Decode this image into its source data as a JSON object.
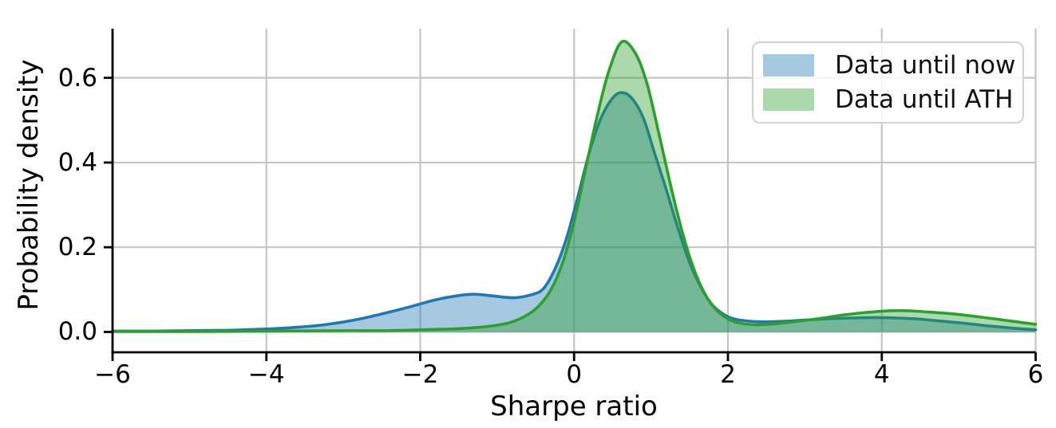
{
  "chart_data": {
    "type": "area",
    "subtype": "kde-density",
    "title": "",
    "xlabel": "Sharpe ratio",
    "ylabel": "Probability density",
    "xlim": [
      -6,
      6
    ],
    "ylim": [
      -0.048,
      0.716
    ],
    "x_ticks": [
      -6,
      -4,
      -2,
      0,
      2,
      4,
      6
    ],
    "x_tick_labels": [
      "−6",
      "−4",
      "−2",
      "0",
      "2",
      "4",
      "6"
    ],
    "y_ticks": [
      0.0,
      0.2,
      0.4,
      0.6
    ],
    "y_tick_labels": [
      "0.0",
      "0.2",
      "0.4",
      "0.6"
    ],
    "grid": true,
    "grid_color": "#c5c5c5",
    "spine_color": "#000000",
    "legend_position": "upper right",
    "series": [
      {
        "name": "Data until now",
        "color": "#1f77b4",
        "fill_opacity": 0.4,
        "peak": {
          "x": 0.62,
          "density": 0.565
        },
        "points": [
          [
            -6.0,
            0.002
          ],
          [
            -5.5,
            0.002
          ],
          [
            -5.0,
            0.003
          ],
          [
            -4.5,
            0.004
          ],
          [
            -4.0,
            0.007
          ],
          [
            -3.6,
            0.011
          ],
          [
            -3.2,
            0.018
          ],
          [
            -2.8,
            0.03
          ],
          [
            -2.4,
            0.047
          ],
          [
            -2.1,
            0.061
          ],
          [
            -1.8,
            0.076
          ],
          [
            -1.5,
            0.086
          ],
          [
            -1.3,
            0.089
          ],
          [
            -1.1,
            0.086
          ],
          [
            -0.9,
            0.082
          ],
          [
            -0.75,
            0.081
          ],
          [
            -0.55,
            0.088
          ],
          [
            -0.4,
            0.102
          ],
          [
            -0.25,
            0.148
          ],
          [
            -0.1,
            0.22
          ],
          [
            0.05,
            0.32
          ],
          [
            0.2,
            0.425
          ],
          [
            0.35,
            0.505
          ],
          [
            0.5,
            0.552
          ],
          [
            0.62,
            0.565
          ],
          [
            0.75,
            0.552
          ],
          [
            0.9,
            0.505
          ],
          [
            1.05,
            0.42
          ],
          [
            1.2,
            0.335
          ],
          [
            1.35,
            0.245
          ],
          [
            1.5,
            0.165
          ],
          [
            1.65,
            0.105
          ],
          [
            1.8,
            0.063
          ],
          [
            2.0,
            0.036
          ],
          [
            2.2,
            0.027
          ],
          [
            2.45,
            0.024
          ],
          [
            2.7,
            0.025
          ],
          [
            3.0,
            0.028
          ],
          [
            3.3,
            0.031
          ],
          [
            3.6,
            0.033
          ],
          [
            3.9,
            0.034
          ],
          [
            4.2,
            0.033
          ],
          [
            4.5,
            0.03
          ],
          [
            4.8,
            0.025
          ],
          [
            5.1,
            0.02
          ],
          [
            5.4,
            0.014
          ],
          [
            5.7,
            0.009
          ],
          [
            6.0,
            0.005
          ]
        ]
      },
      {
        "name": "Data until ATH",
        "color": "#2ca02c",
        "fill_opacity": 0.4,
        "peak": {
          "x": 0.62,
          "density": 0.685
        },
        "points": [
          [
            -6.0,
            0.001
          ],
          [
            -5.0,
            0.001
          ],
          [
            -4.0,
            0.002
          ],
          [
            -3.0,
            0.003
          ],
          [
            -2.5,
            0.003
          ],
          [
            -2.0,
            0.005
          ],
          [
            -1.6,
            0.007
          ],
          [
            -1.3,
            0.01
          ],
          [
            -1.0,
            0.016
          ],
          [
            -0.8,
            0.024
          ],
          [
            -0.6,
            0.041
          ],
          [
            -0.45,
            0.063
          ],
          [
            -0.3,
            0.1
          ],
          [
            -0.15,
            0.163
          ],
          [
            0.0,
            0.26
          ],
          [
            0.15,
            0.385
          ],
          [
            0.3,
            0.51
          ],
          [
            0.45,
            0.615
          ],
          [
            0.62,
            0.685
          ],
          [
            0.8,
            0.657
          ],
          [
            0.95,
            0.585
          ],
          [
            1.1,
            0.47
          ],
          [
            1.25,
            0.35
          ],
          [
            1.4,
            0.24
          ],
          [
            1.55,
            0.152
          ],
          [
            1.7,
            0.09
          ],
          [
            1.85,
            0.052
          ],
          [
            2.0,
            0.031
          ],
          [
            2.15,
            0.021
          ],
          [
            2.35,
            0.017
          ],
          [
            2.6,
            0.019
          ],
          [
            2.9,
            0.025
          ],
          [
            3.2,
            0.032
          ],
          [
            3.5,
            0.04
          ],
          [
            3.8,
            0.046
          ],
          [
            4.1,
            0.05
          ],
          [
            4.35,
            0.05
          ],
          [
            4.6,
            0.047
          ],
          [
            4.9,
            0.043
          ],
          [
            5.2,
            0.037
          ],
          [
            5.5,
            0.03
          ],
          [
            5.75,
            0.024
          ],
          [
            6.0,
            0.018
          ]
        ]
      }
    ]
  }
}
